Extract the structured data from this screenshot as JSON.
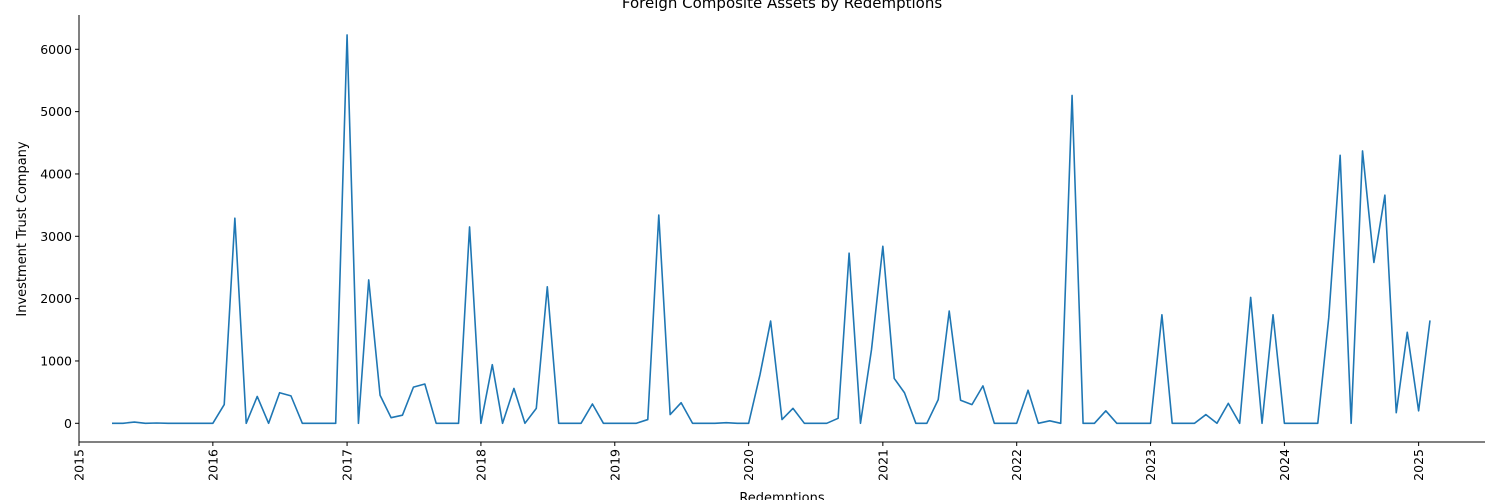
{
  "chart_data": {
    "type": "line",
    "title": "Foreign Composite Assets by Redemptions",
    "xlabel": "Redemptions",
    "ylabel": "Investment Trust Company",
    "x_tick_labels": [
      "2015",
      "2016",
      "2017",
      "2018",
      "2019",
      "2020",
      "2021",
      "2022",
      "2023",
      "2024",
      "2025"
    ],
    "y_tick_labels": [
      "0",
      "1000",
      "2000",
      "3000",
      "4000",
      "5000",
      "6000"
    ],
    "xlim": [
      "2015-01-01",
      "2025-07-01"
    ],
    "ylim": [
      -300,
      6550
    ],
    "grid": false,
    "legend": "none",
    "series_color": "#1f77b4",
    "series": [
      {
        "x": [
          "2015-04",
          "2015-05",
          "2015-06",
          "2015-07",
          "2015-08",
          "2015-09",
          "2015-10",
          "2015-11",
          "2015-12",
          "2016-01",
          "2016-02",
          "2016-03",
          "2016-04",
          "2016-05",
          "2016-06",
          "2016-07",
          "2016-08",
          "2016-09",
          "2016-10",
          "2016-11",
          "2016-12",
          "2017-01",
          "2017-02",
          "2017-03",
          "2017-04",
          "2017-05",
          "2017-06",
          "2017-07",
          "2017-08",
          "2017-09",
          "2017-10",
          "2017-11",
          "2017-12",
          "2018-01",
          "2018-02",
          "2018-03",
          "2018-04",
          "2018-05",
          "2018-06",
          "2018-07",
          "2018-08",
          "2018-09",
          "2018-10",
          "2018-11",
          "2018-12",
          "2019-01",
          "2019-02",
          "2019-03",
          "2019-04",
          "2019-05",
          "2019-06",
          "2019-07",
          "2019-08",
          "2019-09",
          "2019-10",
          "2019-11",
          "2019-12",
          "2020-01",
          "2020-02",
          "2020-03",
          "2020-04",
          "2020-05",
          "2020-06",
          "2020-07",
          "2020-08",
          "2020-09",
          "2020-10",
          "2020-11",
          "2020-12",
          "2021-01",
          "2021-02",
          "2021-03",
          "2021-04",
          "2021-05",
          "2021-06",
          "2021-07",
          "2021-08",
          "2021-09",
          "2021-10",
          "2021-11",
          "2021-12",
          "2022-01",
          "2022-02",
          "2022-03",
          "2022-04",
          "2022-05",
          "2022-06",
          "2022-07",
          "2022-08",
          "2022-09",
          "2022-10",
          "2022-11",
          "2022-12",
          "2023-01",
          "2023-02",
          "2023-03",
          "2023-04",
          "2023-05",
          "2023-06",
          "2023-07",
          "2023-08",
          "2023-09",
          "2023-10",
          "2023-11",
          "2023-12",
          "2024-01",
          "2024-02",
          "2024-03",
          "2024-04",
          "2024-05",
          "2024-06",
          "2024-07",
          "2024-08",
          "2024-09",
          "2024-10",
          "2024-11",
          "2024-12",
          "2025-01",
          "2025-02"
        ],
        "y": [
          0,
          0,
          20,
          0,
          5,
          0,
          0,
          0,
          0,
          0,
          300,
          3290,
          0,
          430,
          0,
          490,
          440,
          0,
          0,
          0,
          0,
          6230,
          0,
          2300,
          450,
          90,
          130,
          580,
          630,
          0,
          0,
          0,
          3150,
          0,
          940,
          0,
          560,
          0,
          240,
          2190,
          0,
          0,
          0,
          310,
          0,
          0,
          0,
          0,
          60,
          3340,
          140,
          330,
          0,
          0,
          0,
          10,
          0,
          0,
          780,
          1640,
          60,
          240,
          0,
          0,
          0,
          80,
          2730,
          0,
          1180,
          2840,
          720,
          490,
          0,
          0,
          380,
          1800,
          370,
          300,
          600,
          0,
          0,
          0,
          530,
          0,
          40,
          0,
          5260,
          0,
          0,
          200,
          0,
          0,
          0,
          0,
          1740,
          0,
          0,
          0,
          140,
          0,
          320,
          0,
          2020,
          0,
          1740,
          0,
          0,
          0,
          0,
          1700,
          4300,
          0,
          4370,
          2580,
          3660,
          170,
          1460,
          200,
          1650
        ]
      }
    ]
  }
}
